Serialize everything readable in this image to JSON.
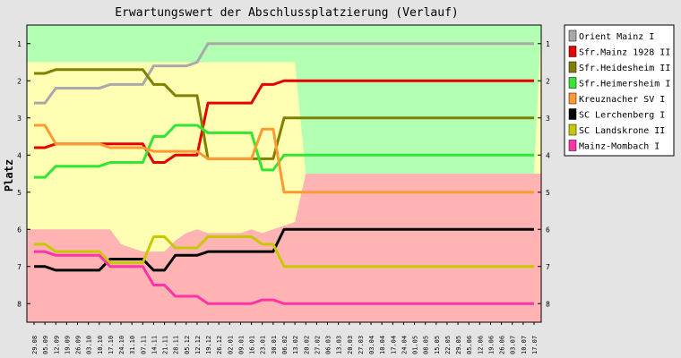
{
  "chart_data": {
    "type": "line",
    "title": "Erwartungswert der Abschlussplatzierung (Verlauf)",
    "ylabel": "Platz",
    "xlabel": "",
    "ylim": [
      0.5,
      8.5
    ],
    "y_inverted": true,
    "y_ticks": [
      1,
      2,
      3,
      4,
      5,
      6,
      7,
      8
    ],
    "grid": false,
    "legend_position": "right",
    "categories": [
      "29.08",
      "05.09",
      "12.09",
      "19.09",
      "26.09",
      "03.10",
      "10.10",
      "17.10",
      "24.10",
      "31.10",
      "07.11",
      "14.11",
      "21.11",
      "28.11",
      "05.12",
      "12.12",
      "19.12",
      "26.12",
      "02.01",
      "09.01",
      "16.01",
      "23.01",
      "30.01",
      "06.02",
      "13.02",
      "20.02",
      "27.02",
      "06.03",
      "13.03",
      "20.03",
      "27.03",
      "03.04",
      "10.04",
      "17.04",
      "24.04",
      "01.05",
      "08.05",
      "15.05",
      "22.05",
      "29.05",
      "05.06",
      "12.06",
      "19.06",
      "26.06",
      "03.07",
      "10.07",
      "17.07"
    ],
    "background_zones": [
      {
        "color": "#b3ffb3",
        "top": [
          1.5,
          1.5,
          1.5,
          1.5,
          1.5,
          1.5,
          1.5,
          1.5,
          1.5,
          1.5,
          1.5,
          1.5,
          1.5,
          1.5,
          1.5,
          1.5,
          1.5,
          1.5,
          1.5,
          1.5,
          1.5,
          1.5,
          1.5,
          1.5,
          1.5,
          4.5,
          4.5,
          4.5,
          4.5,
          4.5,
          4.5,
          4.5,
          4.5,
          4.5,
          4.5,
          4.5,
          4.5,
          4.5,
          4.5,
          4.5,
          4.5,
          4.5,
          4.5,
          4.5,
          4.5,
          4.5,
          4.5
        ],
        "bottom_is_top_of_next": true
      },
      {
        "color": "#ffffb3"
      },
      {
        "color": "#ffb3b3",
        "top": [
          6.0,
          6.0,
          6.0,
          6.0,
          6.0,
          6.0,
          6.0,
          6.0,
          6.4,
          6.5,
          6.6,
          6.6,
          6.6,
          6.3,
          6.1,
          6.0,
          6.1,
          6.1,
          6.1,
          6.1,
          6.0,
          6.1,
          6.0,
          5.9,
          5.8,
          4.5,
          4.5,
          4.5,
          4.5,
          4.5,
          4.5,
          4.5,
          4.5,
          4.5,
          4.5,
          4.5,
          4.5,
          4.5,
          4.5,
          4.5,
          4.5,
          4.5,
          4.5,
          4.5,
          4.5,
          4.5,
          4.5
        ]
      }
    ],
    "series": [
      {
        "name": "Orient Mainz I",
        "color": "#a9a9a9",
        "values": [
          2.6,
          2.6,
          2.2,
          2.2,
          2.2,
          2.2,
          2.2,
          2.1,
          2.1,
          2.1,
          2.1,
          1.6,
          1.6,
          1.6,
          1.6,
          1.5,
          1.0,
          1.0,
          1.0,
          1.0,
          1.0,
          1.0,
          1.0,
          1.0,
          1.0,
          null,
          null,
          null,
          null,
          null,
          null,
          null,
          null,
          null,
          null,
          null,
          null,
          null,
          null,
          null,
          null,
          null,
          null,
          null,
          null,
          null,
          1.0
        ]
      },
      {
        "name": "Sfr.Mainz 1928 II",
        "color": "#e60000",
        "values": [
          3.8,
          3.8,
          3.7,
          3.7,
          3.7,
          3.7,
          3.7,
          3.7,
          3.7,
          3.7,
          3.7,
          4.2,
          4.2,
          4.0,
          4.0,
          4.0,
          2.6,
          2.6,
          2.6,
          2.6,
          2.6,
          2.1,
          2.1,
          2.0,
          2.0,
          null,
          null,
          null,
          null,
          null,
          null,
          null,
          null,
          null,
          null,
          null,
          null,
          null,
          null,
          null,
          null,
          null,
          null,
          null,
          null,
          null,
          2.0
        ]
      },
      {
        "name": "Sfr.Heidesheim II",
        "color": "#808000",
        "values": [
          1.8,
          1.8,
          1.7,
          1.7,
          1.7,
          1.7,
          1.7,
          1.7,
          1.7,
          1.7,
          1.7,
          2.1,
          2.1,
          2.4,
          2.4,
          2.4,
          4.1,
          4.1,
          4.1,
          4.1,
          4.1,
          4.1,
          4.1,
          3.0,
          3.0,
          null,
          null,
          null,
          null,
          null,
          null,
          null,
          null,
          null,
          null,
          null,
          null,
          null,
          null,
          null,
          null,
          null,
          null,
          null,
          null,
          null,
          3.0
        ]
      },
      {
        "name": "Sfr.Heimersheim I",
        "color": "#33e633",
        "values": [
          4.6,
          4.6,
          4.3,
          4.3,
          4.3,
          4.3,
          4.3,
          4.2,
          4.2,
          4.2,
          4.2,
          3.5,
          3.5,
          3.2,
          3.2,
          3.2,
          3.4,
          3.4,
          3.4,
          3.4,
          3.4,
          4.4,
          4.4,
          4.0,
          4.0,
          null,
          null,
          null,
          null,
          null,
          null,
          null,
          null,
          null,
          null,
          null,
          null,
          null,
          null,
          null,
          null,
          null,
          null,
          null,
          null,
          null,
          4.0
        ]
      },
      {
        "name": "Kreuznacher SV  I",
        "color": "#ff9933",
        "values": [
          3.2,
          3.2,
          3.7,
          3.7,
          3.7,
          3.7,
          3.7,
          3.8,
          3.8,
          3.8,
          3.8,
          3.9,
          3.9,
          3.9,
          3.9,
          3.9,
          4.1,
          4.1,
          4.1,
          4.1,
          4.1,
          3.3,
          3.3,
          5.0,
          5.0,
          null,
          null,
          null,
          null,
          null,
          null,
          null,
          null,
          null,
          null,
          null,
          null,
          null,
          null,
          null,
          null,
          null,
          null,
          null,
          null,
          null,
          5.0
        ]
      },
      {
        "name": "SC Lerchenberg I",
        "color": "#000000",
        "values": [
          7.0,
          7.0,
          7.1,
          7.1,
          7.1,
          7.1,
          7.1,
          6.8,
          6.8,
          6.8,
          6.8,
          7.1,
          7.1,
          6.7,
          6.7,
          6.7,
          6.6,
          6.6,
          6.6,
          6.6,
          6.6,
          6.6,
          6.6,
          6.0,
          6.0,
          null,
          null,
          null,
          null,
          null,
          null,
          null,
          null,
          null,
          null,
          null,
          null,
          null,
          null,
          null,
          null,
          null,
          null,
          null,
          null,
          null,
          6.0
        ]
      },
      {
        "name": "SC Landskrone II",
        "color": "#c8c800",
        "values": [
          6.4,
          6.4,
          6.6,
          6.6,
          6.6,
          6.6,
          6.6,
          6.9,
          6.9,
          6.9,
          6.9,
          6.2,
          6.2,
          6.5,
          6.5,
          6.5,
          6.2,
          6.2,
          6.2,
          6.2,
          6.2,
          6.4,
          6.4,
          7.0,
          7.0,
          null,
          null,
          null,
          null,
          null,
          null,
          null,
          null,
          null,
          null,
          null,
          null,
          null,
          null,
          null,
          null,
          null,
          null,
          null,
          null,
          null,
          7.0
        ]
      },
      {
        "name": "Mainz-Mombach I",
        "color": "#ff33aa",
        "values": [
          6.6,
          6.6,
          6.7,
          6.7,
          6.7,
          6.7,
          6.7,
          7.0,
          7.0,
          7.0,
          7.0,
          7.5,
          7.5,
          7.8,
          7.8,
          7.8,
          8.0,
          8.0,
          8.0,
          8.0,
          8.0,
          7.9,
          7.9,
          8.0,
          8.0,
          null,
          null,
          null,
          null,
          null,
          null,
          null,
          null,
          null,
          null,
          null,
          null,
          null,
          null,
          null,
          null,
          null,
          null,
          null,
          null,
          null,
          8.0
        ]
      }
    ]
  }
}
